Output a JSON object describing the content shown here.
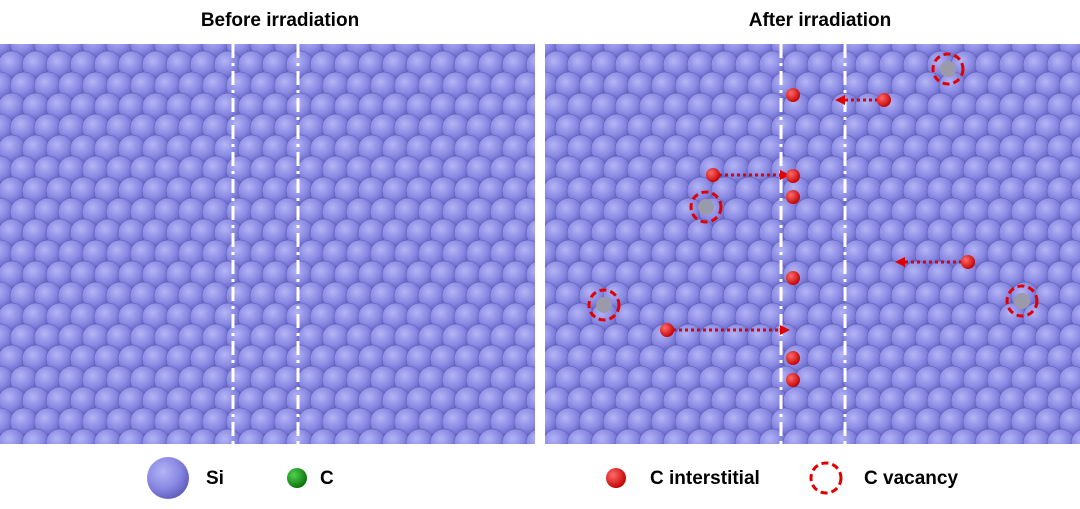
{
  "panels": [
    {
      "title": "Before irradiation"
    },
    {
      "title": "After irradiation"
    }
  ],
  "legend": [
    {
      "label": "Si"
    },
    {
      "label": "C"
    },
    {
      "label": "C interstitial"
    },
    {
      "label": "C vacancy"
    }
  ]
}
